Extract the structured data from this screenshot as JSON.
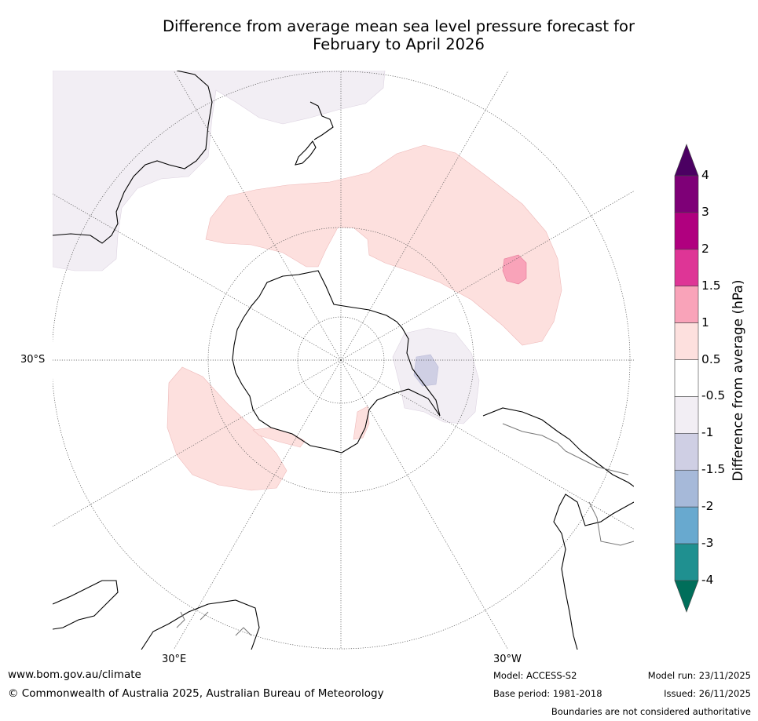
{
  "title_line1": "Difference from average mean sea level pressure forecast for",
  "title_line2": "February to April 2026",
  "axis_labels": {
    "lat": "30°S",
    "lon_east": "30°E",
    "lon_west": "30°W"
  },
  "colorbar": {
    "title": "Difference from average (hPa)",
    "ticks": [
      "4",
      "3",
      "2",
      "1.5",
      "1",
      "0.5",
      "-0.5",
      "-1",
      "-1.5",
      "-2",
      "-3",
      "-4"
    ],
    "colors": {
      "above_4": "#4b0062",
      "3_to_4": "#7e0077",
      "2_to_3": "#b0007f",
      "1.5_to_2": "#de3596",
      "1_to_1.5": "#f9a3b9",
      "0.5_to_1": "#fde0de",
      "-0.5_to_0.5": "#ffffff",
      "-1_to_-0.5": "#f2eef4",
      "-1.5_to_-1": "#cfcfe4",
      "-2_to_-1.5": "#a6b9d9",
      "-3_to_-2": "#68a9cf",
      "-4_to_-3": "#1f9090",
      "below_-4": "#006e5a"
    }
  },
  "footer": {
    "website": "www.bom.gov.au/climate",
    "copyright": "© Commonwealth of Australia 2025, Australian Bureau of Meteorology",
    "model": "Model: ACCESS-S2",
    "base_period": "Base period: 1981-2018",
    "model_run": "Model run: 23/11/2025",
    "issued": "Issued: 26/11/2025",
    "disclaimer": "Boundaries are not considered authoritative"
  }
}
